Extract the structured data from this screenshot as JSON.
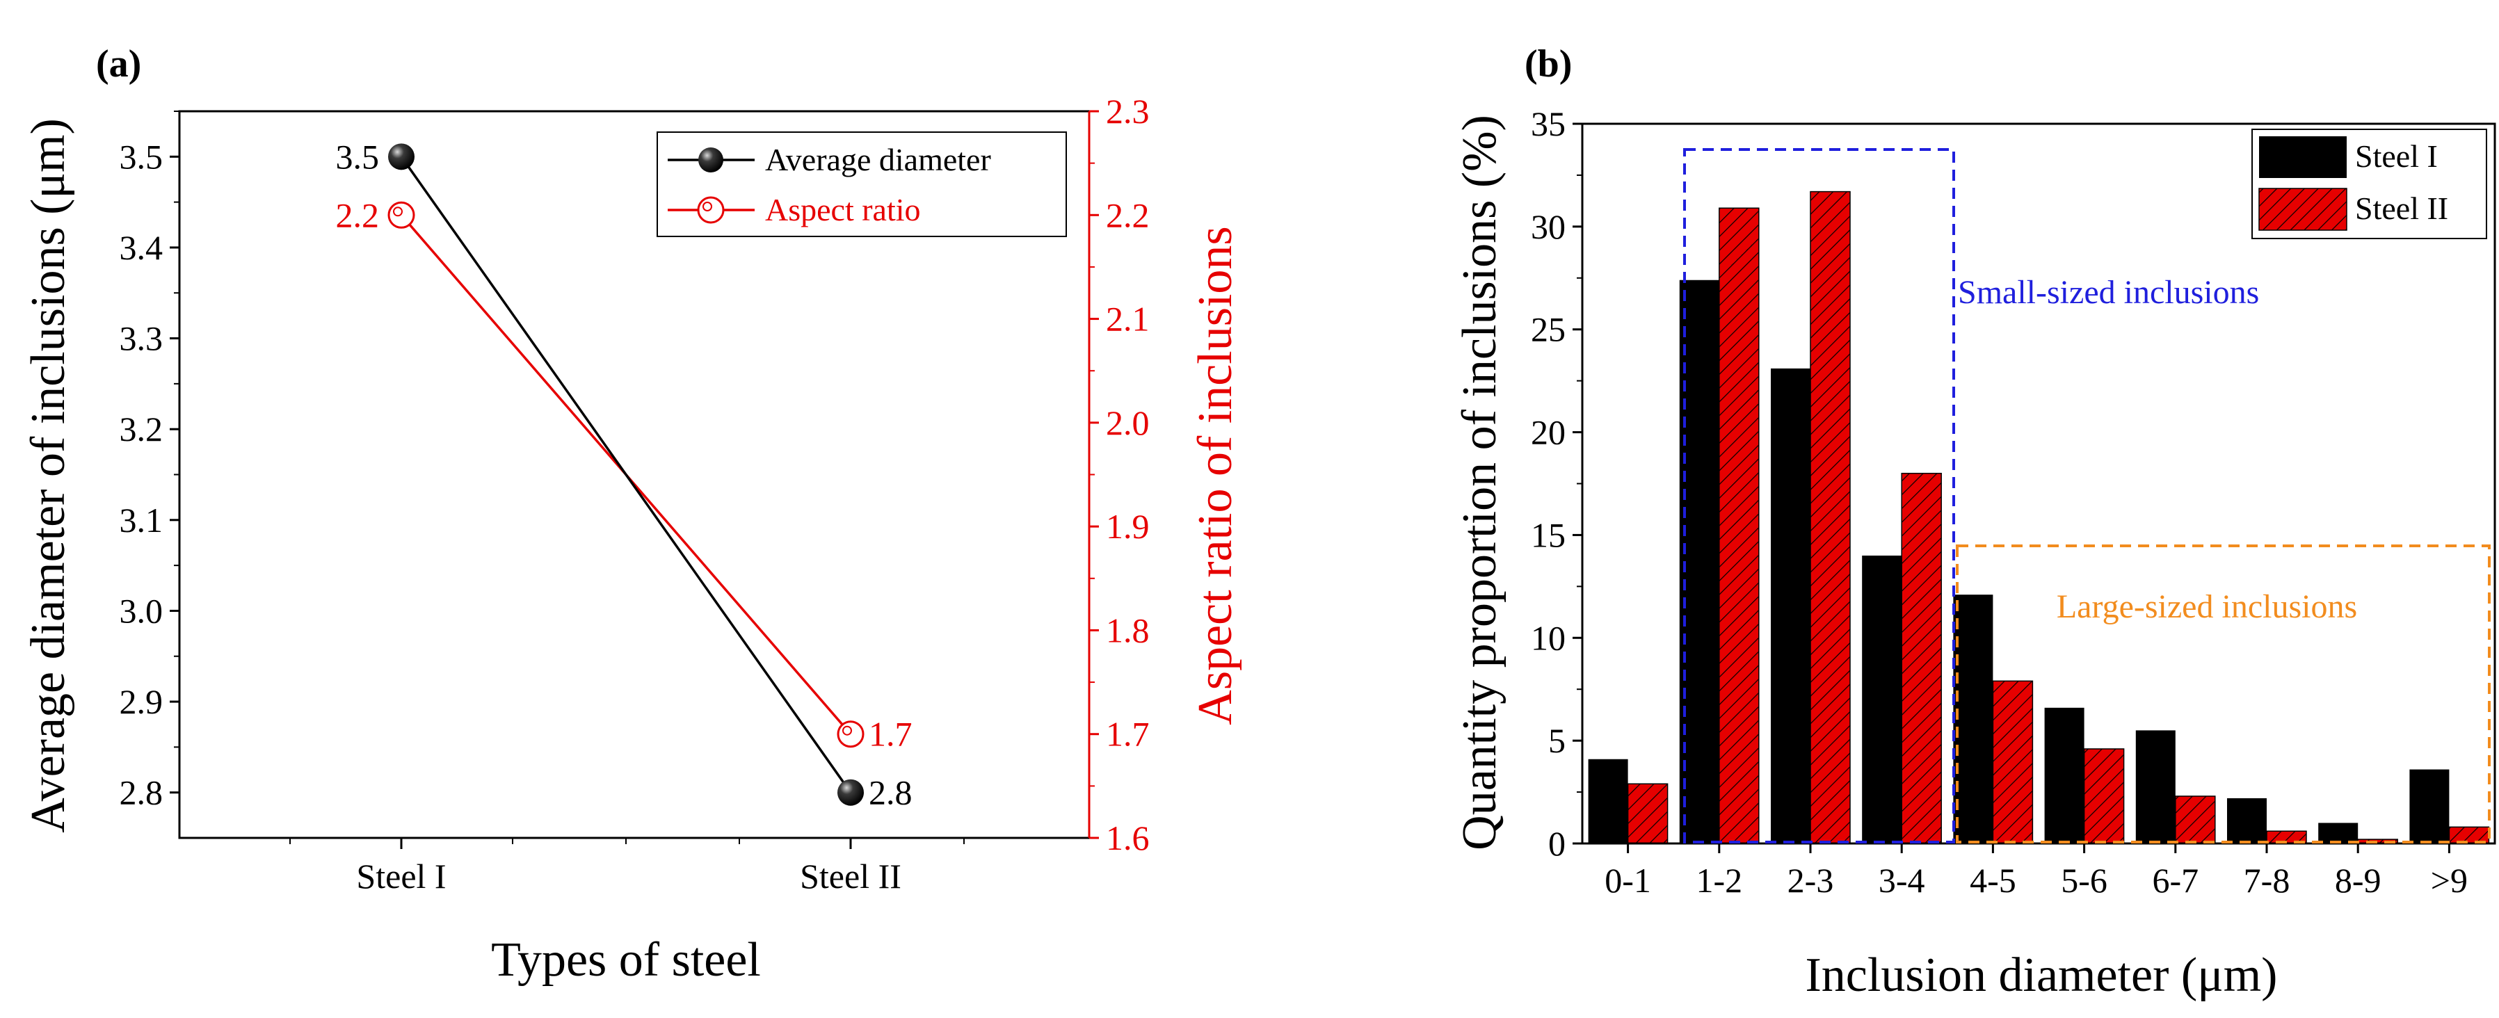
{
  "colors": {
    "black": "#000000",
    "red": "#e60000",
    "blue": "#1f1fdd",
    "orange": "#f28c1e"
  },
  "chart_data": [
    {
      "panel_label": "(a)",
      "type": "line",
      "categories": [
        "Steel I",
        "Steel II"
      ],
      "xlabel": "Types of steel",
      "ylabel": "Average diameter of inclusions (μm)",
      "y2label": "Aspect ratio of inclusions",
      "ylim": [
        2.75,
        3.55
      ],
      "y2lim": [
        1.6,
        2.3
      ],
      "yticks": [
        "2.8",
        "2.9",
        "3.0",
        "3.1",
        "3.2",
        "3.3",
        "3.4",
        "3.5"
      ],
      "y2ticks": [
        "1.6",
        "1.7",
        "1.8",
        "1.9",
        "2.0",
        "2.1",
        "2.2",
        "2.3"
      ],
      "legend_position": "top-right",
      "series": [
        {
          "name": "Average diameter",
          "axis": "left",
          "values": [
            3.5,
            2.8
          ],
          "labels": [
            "3.5",
            "2.8"
          ],
          "color": "#000000",
          "marker": "filled-sphere"
        },
        {
          "name": "Aspect ratio",
          "axis": "right",
          "values": [
            2.2,
            1.7
          ],
          "labels": [
            "2.2",
            "1.7"
          ],
          "color": "#e60000",
          "marker": "open-circle"
        }
      ]
    },
    {
      "panel_label": "(b)",
      "type": "bar",
      "categories": [
        "0-1",
        "1-2",
        "2-3",
        "3-4",
        "4-5",
        "5-6",
        "6-7",
        "7-8",
        "8-9",
        ">9"
      ],
      "xlabel": "Inclusion diameter (μm)",
      "ylabel": "Quantity proportion of inclusions (%)",
      "ylim": [
        0,
        35
      ],
      "yticks": [
        "0",
        "5",
        "10",
        "15",
        "20",
        "25",
        "30",
        "35"
      ],
      "legend_position": "top-right",
      "series": [
        {
          "name": "Steel I",
          "values": [
            4.1,
            27.4,
            23.1,
            14.0,
            12.1,
            6.6,
            5.5,
            2.2,
            1.0,
            3.6
          ],
          "color": "#000000"
        },
        {
          "name": "Steel II",
          "values": [
            2.9,
            30.9,
            31.7,
            18.0,
            7.9,
            4.6,
            2.3,
            0.6,
            0.2,
            0.8
          ],
          "color": "#e60000",
          "pattern": "diagonal-hatch"
        }
      ],
      "annotations": [
        {
          "text": "Small-sized inclusions",
          "color": "#1f1fdd",
          "spans": [
            "1-2",
            "3-4"
          ]
        },
        {
          "text": "Large-sized inclusions",
          "color": "#f28c1e",
          "spans": [
            "4-5",
            ">9"
          ]
        }
      ]
    }
  ]
}
